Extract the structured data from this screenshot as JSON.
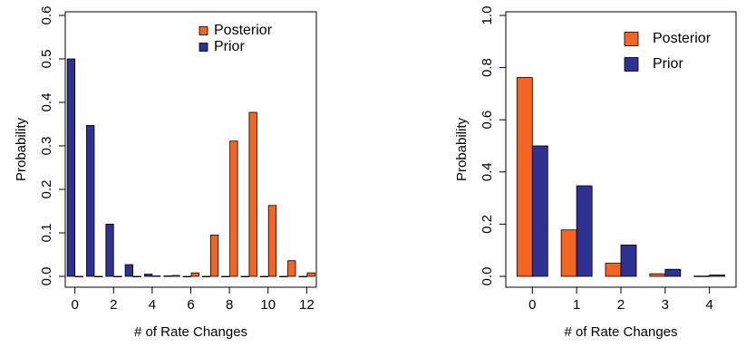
{
  "colors": {
    "posterior": "#f26522",
    "prior": "#2e3192",
    "bar_outline": "#000000"
  },
  "chart_data": [
    {
      "type": "bar",
      "xlabel": "# of Rate Changes",
      "ylabel": "Probability",
      "ylim": [
        0,
        0.6
      ],
      "yticks": [
        0.0,
        0.1,
        0.2,
        0.3,
        0.4,
        0.5,
        0.6
      ],
      "ytick_labels": [
        "0.0",
        "0.1",
        "0.2",
        "0.3",
        "0.4",
        "0.5",
        "0.6"
      ],
      "xlim": [
        -0.5,
        12.5
      ],
      "xticks": [
        0,
        2,
        4,
        6,
        8,
        10,
        12
      ],
      "xtick_labels": [
        "0",
        "2",
        "4",
        "6",
        "8",
        "10",
        "12"
      ],
      "legend_position": "top-right",
      "categories": [
        0,
        1,
        2,
        3,
        4,
        5,
        6,
        7,
        8,
        9,
        10,
        11,
        12
      ],
      "series": [
        {
          "name": "Posterior",
          "values": [
            0.0,
            0.0,
            0.0,
            0.0,
            0.001,
            0.002,
            0.008,
            0.095,
            0.311,
            0.377,
            0.163,
            0.036,
            0.008
          ]
        },
        {
          "name": "Prior",
          "values": [
            0.5,
            0.347,
            0.12,
            0.027,
            0.005,
            0.001,
            0.0,
            0.0,
            0.0,
            0.0,
            0.0,
            0.0,
            0.0
          ]
        }
      ]
    },
    {
      "type": "bar",
      "xlabel": "# of Rate Changes",
      "ylabel": "Probability",
      "ylim": [
        0,
        1.0
      ],
      "yticks": [
        0.0,
        0.2,
        0.4,
        0.6,
        0.8,
        1.0
      ],
      "ytick_labels": [
        "0.0",
        "0.2",
        "0.4",
        "0.6",
        "0.8",
        "1.0"
      ],
      "xlim": [
        -0.6,
        4.6
      ],
      "xticks": [
        0,
        1,
        2,
        3,
        4
      ],
      "xtick_labels": [
        "0",
        "1",
        "2",
        "3",
        "4"
      ],
      "legend_position": "top-right",
      "categories": [
        0,
        1,
        2,
        3,
        4
      ],
      "series": [
        {
          "name": "Posterior",
          "values": [
            0.762,
            0.178,
            0.05,
            0.01,
            0.001
          ]
        },
        {
          "name": "Prior",
          "values": [
            0.5,
            0.347,
            0.12,
            0.027,
            0.005
          ]
        }
      ]
    }
  ]
}
